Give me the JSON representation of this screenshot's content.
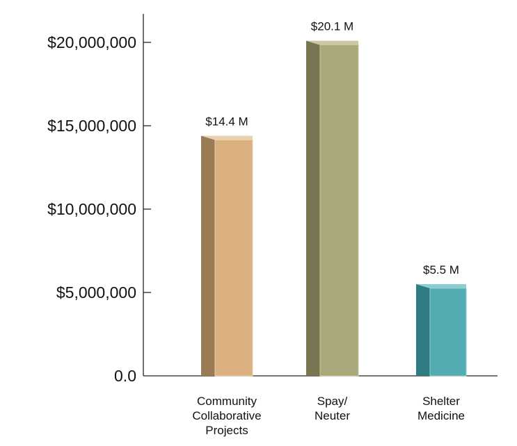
{
  "chart_data": {
    "type": "bar",
    "title": "",
    "xlabel": "",
    "ylabel": "",
    "ylim": [
      0,
      22000000
    ],
    "y_ticks": [
      {
        "value": 0,
        "label": "0.0"
      },
      {
        "value": 5000000,
        "label": "$5,000,000"
      },
      {
        "value": 10000000,
        "label": "$10,000,000"
      },
      {
        "value": 15000000,
        "label": "$15,000,000"
      },
      {
        "value": 20000000,
        "label": "$20,000,000"
      }
    ],
    "categories": [
      [
        "Community",
        "Collaborative",
        "Projects"
      ],
      [
        "Spay/",
        "Neuter"
      ],
      [
        "Shelter",
        "Medicine"
      ]
    ],
    "values": [
      14400000,
      20100000,
      5500000
    ],
    "data_labels": [
      "$14.4 M",
      "$20.1 M",
      "$5.5 M"
    ],
    "colors": [
      {
        "front": "#d9b07e",
        "side": "#9b7b55",
        "top": "#ead2b1"
      },
      {
        "front": "#a9a878",
        "side": "#777650",
        "top": "#cac9a4"
      },
      {
        "front": "#54acb3",
        "side": "#2f7c82",
        "top": "#8dcdd2"
      }
    ],
    "grid": false,
    "legend": "none"
  }
}
